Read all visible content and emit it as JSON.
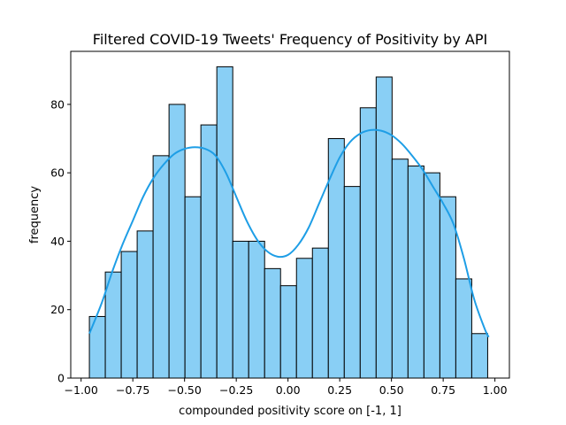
{
  "chart_data": {
    "type": "bar",
    "title": "Filtered COVID-19 Tweets' Frequency of Positivity by API",
    "xlabel": "compounded positivity score on [-1, 1]",
    "ylabel": "frequency",
    "xlim": [
      -1.05,
      1.07
    ],
    "ylim": [
      0,
      95.5
    ],
    "x_ticks": [
      -1.0,
      -0.75,
      -0.5,
      -0.25,
      0.0,
      0.25,
      0.5,
      0.75,
      1.0
    ],
    "x_tick_labels": [
      "−1.00",
      "−0.75",
      "−0.50",
      "−0.25",
      "0.00",
      "0.25",
      "0.50",
      "0.75",
      "1.00"
    ],
    "y_ticks": [
      0,
      20,
      40,
      60,
      80
    ],
    "y_tick_labels": [
      "0",
      "20",
      "40",
      "60",
      "80"
    ],
    "grid": false,
    "bin_edges": [
      -0.96,
      -0.883,
      -0.806,
      -0.729,
      -0.652,
      -0.575,
      -0.498,
      -0.421,
      -0.344,
      -0.267,
      -0.19,
      -0.113,
      -0.036,
      0.041,
      0.118,
      0.195,
      0.272,
      0.349,
      0.426,
      0.503,
      0.58,
      0.657,
      0.734,
      0.811,
      0.888,
      0.965
    ],
    "values": [
      18,
      31,
      37,
      43,
      65,
      80,
      53,
      74,
      91,
      40,
      40,
      32,
      27,
      35,
      38,
      70,
      56,
      79,
      88,
      64,
      62,
      60,
      53,
      29,
      13
    ],
    "kde": {
      "x": [
        -0.96,
        -0.9,
        -0.85,
        -0.8,
        -0.75,
        -0.7,
        -0.65,
        -0.6,
        -0.55,
        -0.5,
        -0.45,
        -0.4,
        -0.35,
        -0.3,
        -0.25,
        -0.2,
        -0.15,
        -0.1,
        -0.05,
        0.0,
        0.05,
        0.1,
        0.15,
        0.2,
        0.25,
        0.3,
        0.35,
        0.4,
        0.45,
        0.5,
        0.55,
        0.6,
        0.65,
        0.7,
        0.75,
        0.8,
        0.85,
        0.9,
        0.95,
        0.97
      ],
      "y": [
        13,
        22,
        31,
        39,
        46,
        53,
        58.5,
        62.5,
        65.5,
        67,
        67.5,
        67,
        65,
        60,
        53,
        46,
        40.5,
        37,
        35.5,
        36,
        39,
        44,
        51,
        58,
        64.5,
        69,
        71.5,
        72.5,
        72.3,
        71,
        68.5,
        65,
        61,
        56,
        51,
        45,
        35,
        23,
        14.5,
        12
      ]
    },
    "bar_color": "#89CFF5",
    "bar_edge_color": "#000000",
    "kde_color": "#1E9EE6"
  }
}
